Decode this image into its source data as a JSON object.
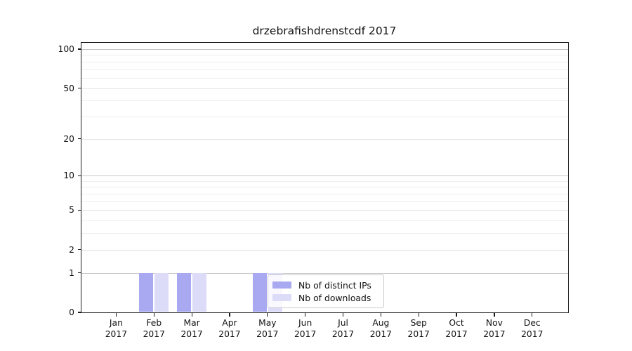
{
  "title": "drzebrafishdrenstcdf 2017",
  "chart_data": {
    "type": "bar",
    "title": "drzebrafishdrenstcdf 2017",
    "categories": [
      "Jan 2017",
      "Feb 2017",
      "Mar 2017",
      "Apr 2017",
      "May 2017",
      "Jun 2017",
      "Jul 2017",
      "Aug 2017",
      "Sep 2017",
      "Oct 2017",
      "Nov 2017",
      "Dec 2017"
    ],
    "months": [
      {
        "label": "Jan",
        "year": "2017"
      },
      {
        "label": "Feb",
        "year": "2017"
      },
      {
        "label": "Mar",
        "year": "2017"
      },
      {
        "label": "Apr",
        "year": "2017"
      },
      {
        "label": "May",
        "year": "2017"
      },
      {
        "label": "Jun",
        "year": "2017"
      },
      {
        "label": "Jul",
        "year": "2017"
      },
      {
        "label": "Aug",
        "year": "2017"
      },
      {
        "label": "Sep",
        "year": "2017"
      },
      {
        "label": "Oct",
        "year": "2017"
      },
      {
        "label": "Nov",
        "year": "2017"
      },
      {
        "label": "Dec",
        "year": "2017"
      }
    ],
    "series": [
      {
        "name": "Nb of distinct IPs",
        "color": "#a9a9f2",
        "values": [
          0,
          1,
          1,
          0,
          1,
          0,
          0,
          0,
          0,
          0,
          0,
          0
        ]
      },
      {
        "name": "Nb of downloads",
        "color": "#dcdcf9",
        "values": [
          0,
          1,
          1,
          0,
          1,
          0,
          0,
          0,
          0,
          0,
          0,
          0
        ]
      }
    ],
    "yscale": "log1p",
    "ylim": [
      0,
      113
    ],
    "yticks": [
      0,
      1,
      2,
      5,
      10,
      20,
      50,
      100
    ],
    "decade_gridlines": [
      1,
      10,
      100
    ],
    "labeled_gridlines": [
      2,
      5,
      20,
      50
    ],
    "minor_gridlines": [
      3,
      4,
      6,
      7,
      8,
      9,
      30,
      40,
      60,
      70,
      80,
      90
    ],
    "grid": "horizontal",
    "legend_position": "inside lower-center",
    "xlabel": "",
    "ylabel": ""
  },
  "colors": {
    "background": "#ffffff",
    "spine": "#1a1a1a",
    "grid_decade": "#c6c6c6",
    "grid_labeled": "#e2e2e2",
    "grid_minor": "#eeeeee",
    "bar_distinct_ips": "#a9a9f2",
    "bar_downloads": "#dcdcf9",
    "legend_border": "#cccccc"
  }
}
